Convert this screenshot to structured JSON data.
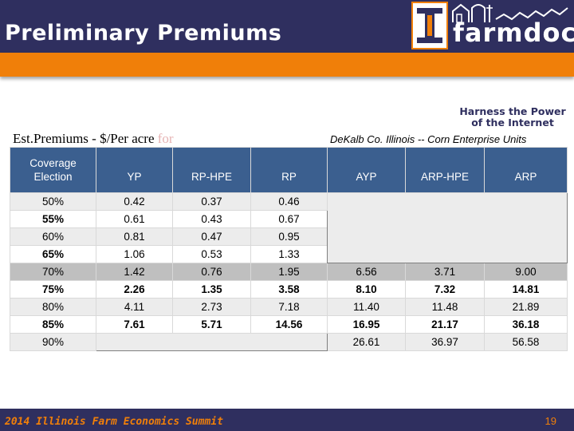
{
  "header": {
    "title": "Preliminary Premiums"
  },
  "logo": {
    "mark": "I",
    "brand": "farmdoc",
    "tagline_line1": "Harness the Power",
    "tagline_line2": "of the Internet"
  },
  "caption": {
    "left_main": "Est.Premiums -  $/Per acre ",
    "left_faded": "for",
    "right": "DeKalb Co. Illinois  --  Corn Enterprise Units"
  },
  "table": {
    "headers": [
      "Coverage Election",
      "YP",
      "RP-HPE",
      "RP",
      "AYP",
      "ARP-HPE",
      "ARP"
    ],
    "rows": [
      {
        "coverage": "50%",
        "yp": "0.42",
        "rphpe": "0.37",
        "rp": "0.46",
        "ayp": "",
        "arphpe": "",
        "arp": ""
      },
      {
        "coverage": "55%",
        "yp": "0.61",
        "rphpe": "0.43",
        "rp": "0.67",
        "ayp": "",
        "arphpe": "",
        "arp": ""
      },
      {
        "coverage": "60%",
        "yp": "0.81",
        "rphpe": "0.47",
        "rp": "0.95",
        "ayp": "",
        "arphpe": "",
        "arp": ""
      },
      {
        "coverage": "65%",
        "yp": "1.06",
        "rphpe": "0.53",
        "rp": "1.33",
        "ayp": "",
        "arphpe": "",
        "arp": ""
      },
      {
        "coverage": "70%",
        "yp": "1.42",
        "rphpe": "0.76",
        "rp": "1.95",
        "ayp": "6.56",
        "arphpe": "3.71",
        "arp": "9.00"
      },
      {
        "coverage": "75%",
        "yp": "2.26",
        "rphpe": "1.35",
        "rp": "3.58",
        "ayp": "8.10",
        "arphpe": "7.32",
        "arp": "14.81"
      },
      {
        "coverage": "80%",
        "yp": "4.11",
        "rphpe": "2.73",
        "rp": "7.18",
        "ayp": "11.40",
        "arphpe": "11.48",
        "arp": "21.89"
      },
      {
        "coverage": "85%",
        "yp": "7.61",
        "rphpe": "5.71",
        "rp": "14.56",
        "ayp": "16.95",
        "arphpe": "21.17",
        "arp": "36.18"
      },
      {
        "coverage": "90%",
        "yp": "",
        "rphpe": "",
        "rp": "",
        "ayp": "26.61",
        "arphpe": "36.97",
        "arp": "56.58"
      }
    ]
  },
  "footer": {
    "text": "2014 Illinois Farm Economics Summit",
    "page": "19"
  },
  "colors": {
    "navy": "#2f2f5f",
    "orange": "#f07f09",
    "table_header": "#3b5f8f",
    "unavailable": "#7f7f7f"
  }
}
